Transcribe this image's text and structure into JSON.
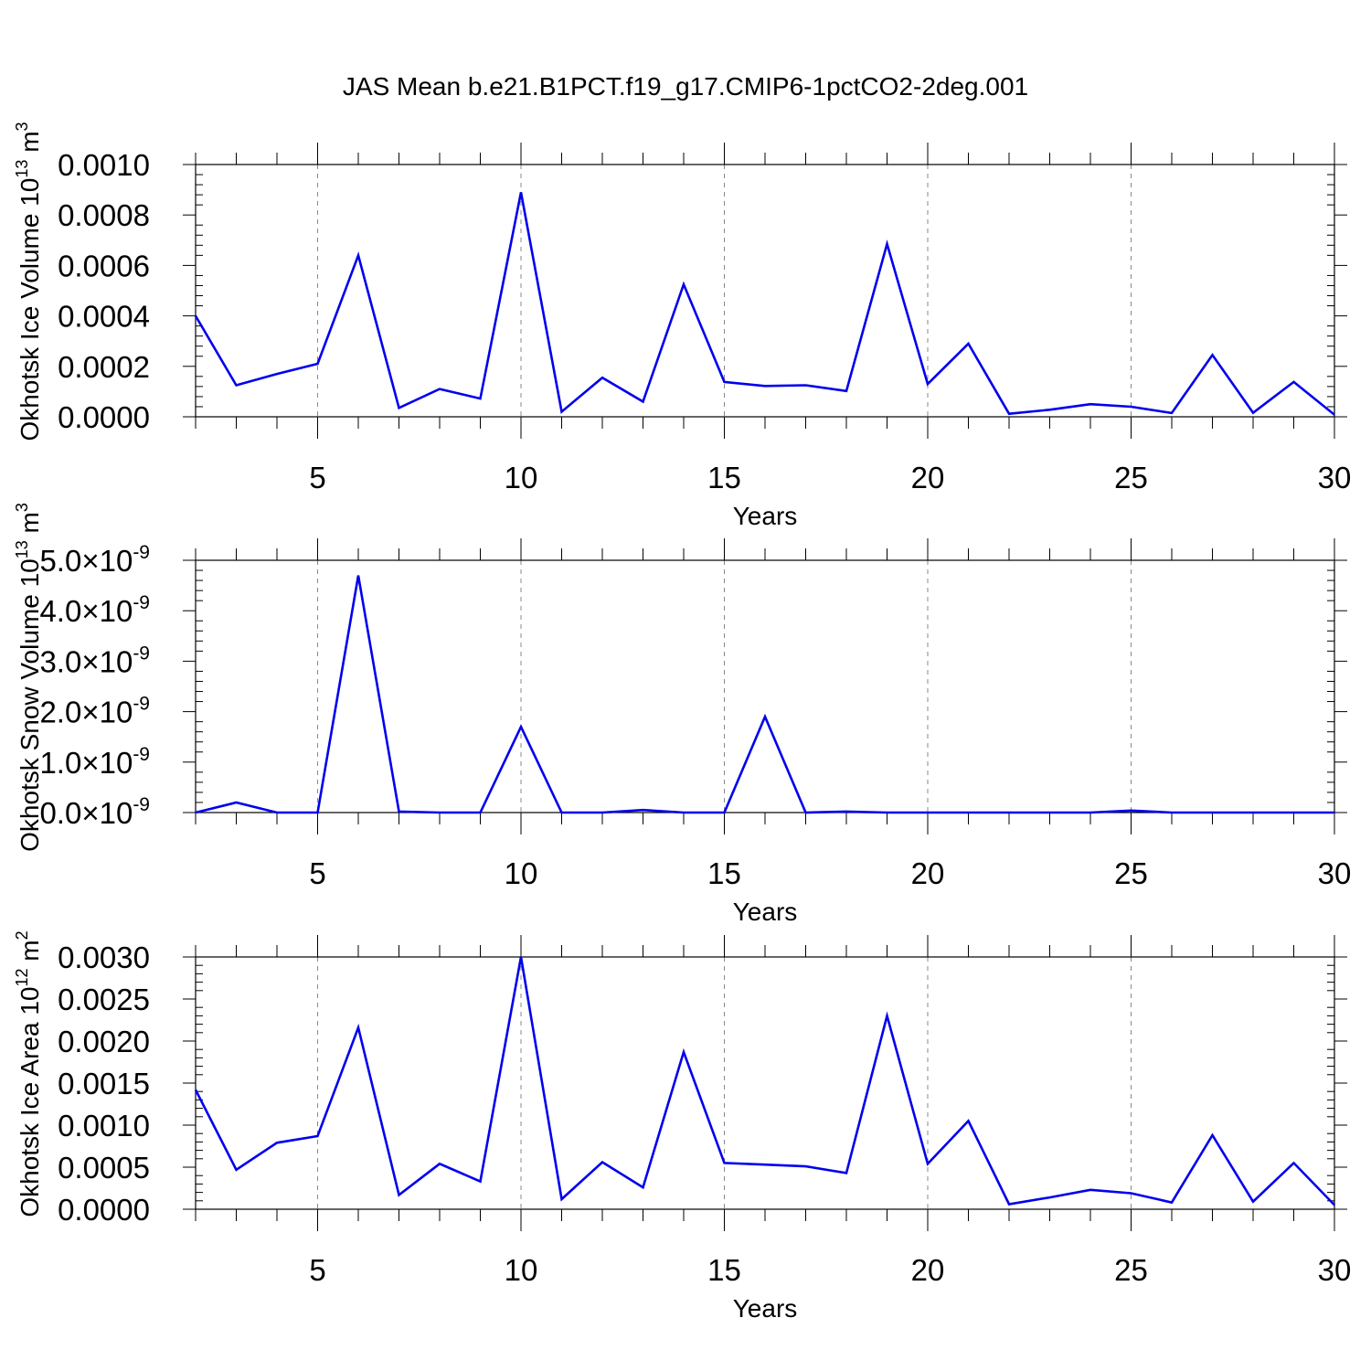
{
  "figure": {
    "title": "JAS Mean b.e21.B1PCT.f19_g17.CMIP6-1pctCO2-2deg.001"
  },
  "colors": {
    "line": "#0000ee",
    "axis": "#000000",
    "grid": "#888888"
  },
  "chart_data": [
    {
      "type": "line",
      "ylabel": "Okhotsk Ice Volume 10",
      "ylabel_sup": "13",
      "ylabel_unit": "m",
      "ylabel_unit_sup": "3",
      "xlabel": "Years",
      "xlim": [
        2,
        30
      ],
      "ylim": [
        0,
        0.001
      ],
      "grid": "vertical dashed at major x ticks",
      "x_ticks": [
        5,
        10,
        15,
        20,
        25,
        30
      ],
      "x_tick_labels": [
        "5",
        "10",
        "15",
        "20",
        "25",
        "30"
      ],
      "y_ticks": [
        0,
        0.0002,
        0.0004,
        0.0006,
        0.0008,
        0.001
      ],
      "y_tick_labels": [
        "0.0000",
        "0.0002",
        "0.0004",
        "0.0006",
        "0.0008",
        "0.0010"
      ],
      "x": [
        2,
        3,
        4,
        5,
        6,
        7,
        8,
        9,
        10,
        11,
        12,
        13,
        14,
        15,
        16,
        17,
        18,
        19,
        20,
        21,
        22,
        23,
        24,
        25,
        26,
        27,
        28,
        29,
        30
      ],
      "series": [
        {
          "values": [
            0.0004,
            0.000125,
            0.00017,
            0.00021,
            0.00064,
            3.5e-05,
            0.00011,
            7.2e-05,
            0.00089,
            2e-05,
            0.000155,
            6e-05,
            0.000525,
            0.000138,
            0.000122,
            0.000125,
            0.000102,
            0.000685,
            0.00013,
            0.00029,
            1.2e-05,
            2.8e-05,
            5e-05,
            4e-05,
            1.5e-05,
            0.000245,
            1.6e-05,
            0.000138,
            8e-06
          ]
        }
      ]
    },
    {
      "type": "line",
      "ylabel": "Okhotsk Snow Volume 10",
      "ylabel_sup": "13",
      "ylabel_unit": "m",
      "ylabel_unit_sup": "3",
      "xlabel": "Years",
      "xlim": [
        2,
        30
      ],
      "ylim": [
        0,
        5e-09
      ],
      "grid": "vertical dashed at major x ticks",
      "x_ticks": [
        5,
        10,
        15,
        20,
        25,
        30
      ],
      "x_tick_labels": [
        "5",
        "10",
        "15",
        "20",
        "25",
        "30"
      ],
      "y_ticks": [
        0,
        1e-09,
        2e-09,
        3e-09,
        4e-09,
        5e-09
      ],
      "y_tick_labels": [
        {
          "mant": "0.0",
          "times": "×",
          "base": "10",
          "exp": "-9"
        },
        {
          "mant": "1.0",
          "times": "×",
          "base": "10",
          "exp": "-9"
        },
        {
          "mant": "2.0",
          "times": "×",
          "base": "10",
          "exp": "-9"
        },
        {
          "mant": "3.0",
          "times": "×",
          "base": "10",
          "exp": "-9"
        },
        {
          "mant": "4.0",
          "times": "×",
          "base": "10",
          "exp": "-9"
        },
        {
          "mant": "5.0",
          "times": "×",
          "base": "10",
          "exp": "-9"
        }
      ],
      "x": [
        2,
        3,
        4,
        5,
        6,
        7,
        8,
        9,
        10,
        11,
        12,
        13,
        14,
        15,
        16,
        17,
        18,
        19,
        20,
        21,
        22,
        23,
        24,
        25,
        26,
        27,
        28,
        29,
        30
      ],
      "series": [
        {
          "values": [
            0.0,
            2e-10,
            0.0,
            0.0,
            4.7e-09,
            2e-11,
            0.0,
            0.0,
            1.7e-09,
            0.0,
            0.0,
            5e-11,
            0.0,
            0.0,
            1.9e-09,
            0.0,
            2e-11,
            0.0,
            0.0,
            0.0,
            0.0,
            0.0,
            0.0,
            4e-11,
            0.0,
            0.0,
            0.0,
            0.0,
            0.0
          ]
        }
      ]
    },
    {
      "type": "line",
      "ylabel": "Okhotsk Ice Area 10",
      "ylabel_sup": "12",
      "ylabel_unit": "m",
      "ylabel_unit_sup": "2",
      "xlabel": "Years",
      "xlim": [
        2,
        30
      ],
      "ylim": [
        0,
        0.003
      ],
      "grid": "vertical dashed at major x ticks",
      "x_ticks": [
        5,
        10,
        15,
        20,
        25,
        30
      ],
      "x_tick_labels": [
        "5",
        "10",
        "15",
        "20",
        "25",
        "30"
      ],
      "y_ticks": [
        0,
        0.0005,
        0.001,
        0.0015,
        0.002,
        0.0025,
        0.003
      ],
      "y_tick_labels": [
        "0.0000",
        "0.0005",
        "0.0010",
        "0.0015",
        "0.0020",
        "0.0025",
        "0.0030"
      ],
      "x": [
        2,
        3,
        4,
        5,
        6,
        7,
        8,
        9,
        10,
        11,
        12,
        13,
        14,
        15,
        16,
        17,
        18,
        19,
        20,
        21,
        22,
        23,
        24,
        25,
        26,
        27,
        28,
        29,
        30
      ],
      "series": [
        {
          "values": [
            0.00142,
            0.00047,
            0.00079,
            0.00087,
            0.00216,
            0.00017,
            0.00054,
            0.00033,
            0.003,
            0.00012,
            0.00056,
            0.00026,
            0.00187,
            0.00055,
            0.00053,
            0.00051,
            0.00043,
            0.0023,
            0.00054,
            0.00105,
            6e-05,
            0.00014,
            0.00023,
            0.00019,
            8e-05,
            0.00088,
            9e-05,
            0.00055,
            5e-05
          ]
        }
      ]
    }
  ]
}
